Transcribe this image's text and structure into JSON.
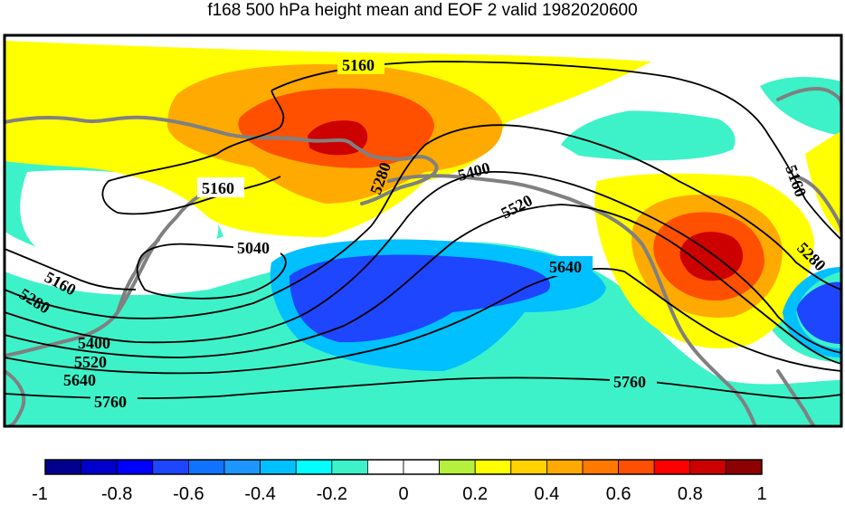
{
  "title": "f168 500 hPa height mean and EOF 2 valid 1982020600",
  "colorbar": {
    "colors": [
      "#00008f",
      "#0000cc",
      "#0000ff",
      "#1e46ff",
      "#0f73ff",
      "#1e96ff",
      "#00c0ff",
      "#00ffff",
      "#3df2c9",
      "#ffffff",
      "#ffffff",
      "#b4f03c",
      "#ffff00",
      "#ffd200",
      "#ffaa00",
      "#ff7800",
      "#ff5000",
      "#ff0000",
      "#cd0000",
      "#8f0000"
    ],
    "ticks": [
      "-1",
      "-0.8",
      "-0.6",
      "-0.4",
      "-0.2",
      "0",
      "0.2",
      "0.4",
      "0.6",
      "0.8",
      "1"
    ]
  },
  "contours": [
    {
      "value": "5160",
      "labels": [
        "5160",
        "5160",
        "5160",
        "5160"
      ]
    },
    {
      "value": "5040",
      "labels": [
        "5040"
      ]
    },
    {
      "value": "5280",
      "labels": [
        "5280",
        "5280",
        "5280"
      ]
    },
    {
      "value": "5400",
      "labels": [
        "5400",
        "5400"
      ]
    },
    {
      "value": "5520",
      "labels": [
        "5520",
        "5520"
      ]
    },
    {
      "value": "5640",
      "labels": [
        "5640",
        "5640"
      ]
    },
    {
      "value": "5760",
      "labels": [
        "5760",
        "5760"
      ]
    }
  ],
  "colors": {
    "coastline": "#808080",
    "contour": "#000000",
    "frame": "#000000"
  }
}
